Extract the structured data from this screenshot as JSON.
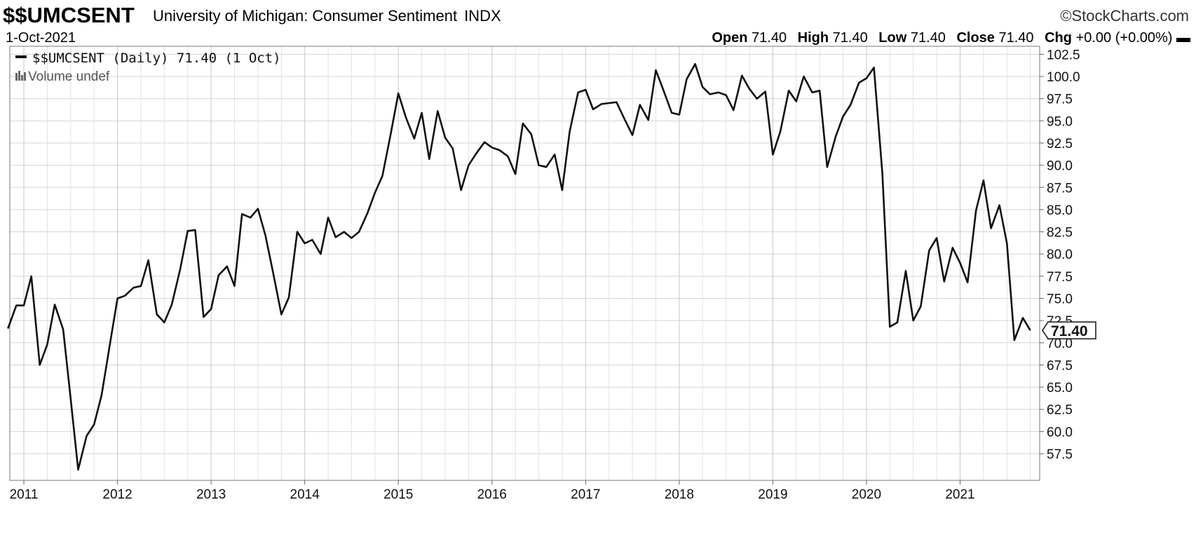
{
  "header": {
    "symbol": "$$UMCSENT",
    "description": "University of Michigan: Consumer Sentiment",
    "exchange": "INDX",
    "logo": "©StockCharts.com",
    "date": "1-Oct-2021",
    "open_label": "Open",
    "open": "71.40",
    "high_label": "High",
    "high": "71.40",
    "low_label": "Low",
    "low": "71.40",
    "close_label": "Close",
    "close": "71.40",
    "chg_label": "Chg",
    "chg": "+0.00 (+0.00%)",
    "chg_marker": "▬"
  },
  "legend": {
    "series": "$$UMCSENT (Daily) 71.40 (1 Oct)",
    "volume": "Volume undef",
    "series_icon": "line-legend-icon",
    "volume_icon": "volume-bars-icon"
  },
  "chart_data": {
    "type": "line",
    "title": "",
    "ylim": [
      54.5,
      103.4
    ],
    "xlim": [
      2010.85,
      2021.85
    ],
    "y_ticks": [
      57.5,
      60.0,
      62.5,
      65.0,
      67.5,
      70.0,
      72.5,
      75.0,
      77.5,
      80.0,
      82.5,
      85.0,
      87.5,
      90.0,
      92.5,
      95.0,
      97.5,
      100.0,
      102.5
    ],
    "x_ticks": [
      2011,
      2012,
      2013,
      2014,
      2015,
      2016,
      2017,
      2018,
      2019,
      2020,
      2021
    ],
    "last_value_label": "71.40",
    "grid": true,
    "colors": {
      "line": "#111111",
      "grid": "#d4d4d4"
    },
    "series": [
      {
        "name": "$$UMCSENT",
        "x": [
          2010.83,
          2010.92,
          2011.0,
          2011.08,
          2011.17,
          2011.25,
          2011.33,
          2011.42,
          2011.5,
          2011.58,
          2011.67,
          2011.75,
          2011.83,
          2011.92,
          2012.0,
          2012.08,
          2012.17,
          2012.25,
          2012.33,
          2012.42,
          2012.5,
          2012.58,
          2012.67,
          2012.75,
          2012.83,
          2012.92,
          2013.0,
          2013.08,
          2013.17,
          2013.25,
          2013.33,
          2013.42,
          2013.5,
          2013.58,
          2013.67,
          2013.75,
          2013.83,
          2013.92,
          2014.0,
          2014.08,
          2014.17,
          2014.25,
          2014.33,
          2014.42,
          2014.5,
          2014.58,
          2014.67,
          2014.75,
          2014.83,
          2014.92,
          2015.0,
          2015.08,
          2015.17,
          2015.25,
          2015.33,
          2015.42,
          2015.5,
          2015.58,
          2015.67,
          2015.75,
          2015.83,
          2015.92,
          2016.0,
          2016.08,
          2016.17,
          2016.25,
          2016.33,
          2016.42,
          2016.5,
          2016.58,
          2016.67,
          2016.75,
          2016.83,
          2016.92,
          2017.0,
          2017.08,
          2017.17,
          2017.25,
          2017.33,
          2017.42,
          2017.5,
          2017.58,
          2017.67,
          2017.75,
          2017.83,
          2017.92,
          2018.0,
          2018.08,
          2018.17,
          2018.25,
          2018.33,
          2018.42,
          2018.5,
          2018.58,
          2018.67,
          2018.75,
          2018.83,
          2018.92,
          2019.0,
          2019.08,
          2019.17,
          2019.25,
          2019.33,
          2019.42,
          2019.5,
          2019.58,
          2019.67,
          2019.75,
          2019.83,
          2019.92,
          2020.0,
          2020.08,
          2020.17,
          2020.25,
          2020.33,
          2020.42,
          2020.5,
          2020.58,
          2020.67,
          2020.75,
          2020.83,
          2020.92,
          2021.0,
          2021.08,
          2021.17,
          2021.25,
          2021.33,
          2021.42,
          2021.5,
          2021.58,
          2021.67,
          2021.75
        ],
        "y": [
          71.6,
          74.2,
          74.2,
          77.5,
          67.5,
          69.8,
          74.3,
          71.5,
          63.7,
          55.7,
          59.5,
          60.8,
          64.1,
          69.9,
          75.0,
          75.3,
          76.2,
          76.4,
          79.3,
          73.2,
          72.3,
          74.3,
          78.3,
          82.6,
          82.7,
          72.9,
          73.8,
          77.6,
          78.6,
          76.4,
          84.5,
          84.1,
          85.1,
          82.1,
          77.5,
          73.2,
          75.1,
          82.5,
          81.2,
          81.6,
          80.0,
          84.1,
          81.9,
          82.5,
          81.8,
          82.5,
          84.6,
          86.9,
          88.8,
          93.6,
          98.1,
          95.4,
          93.0,
          95.9,
          90.7,
          96.1,
          93.1,
          91.9,
          87.2,
          90.0,
          91.3,
          92.6,
          92.0,
          91.7,
          91.0,
          89.0,
          94.7,
          93.5,
          90.0,
          89.8,
          91.2,
          87.2,
          93.8,
          98.2,
          98.5,
          96.3,
          96.9,
          97.0,
          97.1,
          95.1,
          93.4,
          96.8,
          95.1,
          100.7,
          98.5,
          95.9,
          95.7,
          99.7,
          101.4,
          98.8,
          98.0,
          98.2,
          97.9,
          96.2,
          100.1,
          98.6,
          97.5,
          98.3,
          91.2,
          93.8,
          98.4,
          97.2,
          100.0,
          98.2,
          98.4,
          89.8,
          93.2,
          95.5,
          96.8,
          99.3,
          99.8,
          101.0,
          89.1,
          71.8,
          72.3,
          78.1,
          72.5,
          74.1,
          80.4,
          81.8,
          76.9,
          80.7,
          79.0,
          76.8,
          84.9,
          88.3,
          82.9,
          85.5,
          81.2,
          70.3,
          72.8,
          71.4
        ]
      }
    ]
  }
}
